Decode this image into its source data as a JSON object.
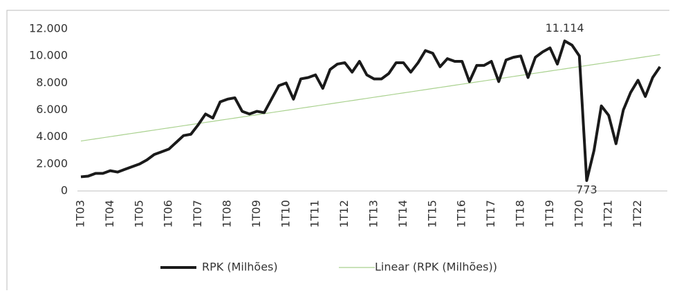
{
  "chart_data": {
    "type": "line",
    "categories": [
      "1T03",
      null,
      null,
      null,
      "1T04",
      null,
      null,
      null,
      "1T05",
      null,
      null,
      null,
      "1T06",
      null,
      null,
      null,
      "1T07",
      null,
      null,
      null,
      "1T08",
      null,
      null,
      null,
      "1T09",
      null,
      null,
      null,
      "1T10",
      null,
      null,
      null,
      "1T11",
      null,
      null,
      null,
      "1T12",
      null,
      null,
      null,
      "1T13",
      null,
      null,
      null,
      "1T14",
      null,
      null,
      null,
      "1T15",
      null,
      null,
      null,
      "1T16",
      null,
      null,
      null,
      "1T17",
      null,
      null,
      null,
      "1T18",
      null,
      null,
      null,
      "1T19",
      null,
      null,
      null,
      "1T20",
      null,
      null,
      null,
      "1T21",
      null,
      null,
      null,
      "1T22",
      null,
      null,
      null
    ],
    "series": [
      {
        "name": "RPK (Milhões)",
        "color": "#1a1a1a",
        "values": [
          1050,
          1100,
          1300,
          1300,
          1500,
          1400,
          1600,
          1800,
          2000,
          2300,
          2700,
          2900,
          3100,
          3600,
          4100,
          4200,
          4900,
          5700,
          5400,
          6600,
          6800,
          6900,
          5900,
          5700,
          5900,
          5800,
          6800,
          7800,
          8000,
          6800,
          8300,
          8400,
          8600,
          7600,
          9000,
          9400,
          9500,
          8800,
          9600,
          8600,
          8300,
          8300,
          8700,
          9500,
          9500,
          8800,
          9500,
          10400,
          10200,
          9200,
          9800,
          9600,
          9600,
          8100,
          9300,
          9300,
          9600,
          8100,
          9700,
          9900,
          10000,
          8400,
          9900,
          10300,
          10600,
          9400,
          11114,
          10800,
          10000,
          773,
          3000,
          6300,
          5600,
          3500,
          6000,
          7300,
          8200,
          7000,
          8400,
          9200
        ],
        "value_labels": [
          null,
          null,
          null,
          null,
          null,
          null,
          null,
          null,
          null,
          null,
          null,
          null,
          null,
          null,
          null,
          null,
          null,
          null,
          null,
          null,
          null,
          null,
          null,
          null,
          null,
          null,
          null,
          null,
          null,
          null,
          null,
          null,
          null,
          null,
          null,
          null,
          null,
          null,
          null,
          null,
          null,
          null,
          null,
          null,
          null,
          null,
          null,
          null,
          null,
          null,
          null,
          null,
          null,
          null,
          null,
          null,
          null,
          null,
          null,
          null,
          null,
          null,
          null,
          null,
          null,
          null,
          "11.114",
          null,
          null,
          "773",
          null,
          null,
          null,
          null,
          null,
          null,
          null,
          null,
          null,
          null
        ]
      },
      {
        "name": "Linear (RPK (Milhões))",
        "color": "#a9d18e",
        "values": [
          3700,
          3781,
          3862,
          3943,
          4024,
          4105,
          4186,
          4267,
          4348,
          4429,
          4510,
          4591,
          4672,
          4753,
          4834,
          4915,
          4996,
          5077,
          5158,
          5239,
          5320,
          5401,
          5482,
          5563,
          5644,
          5725,
          5806,
          5887,
          5968,
          6049,
          6130,
          6211,
          6292,
          6373,
          6454,
          6535,
          6616,
          6697,
          6778,
          6859,
          6940,
          7021,
          7102,
          7183,
          7264,
          7345,
          7426,
          7507,
          7588,
          7669,
          7750,
          7831,
          7912,
          7993,
          8074,
          8155,
          8236,
          8317,
          8398,
          8479,
          8560,
          8641,
          8722,
          8803,
          8884,
          8965,
          9046,
          9127,
          9208,
          9289,
          9370,
          9451,
          9532,
          9613,
          9694,
          9775,
          9856,
          9937,
          10018,
          10099
        ]
      }
    ],
    "ylim": [
      0,
      12000
    ],
    "yticks": [
      0,
      {
        "value": 2000,
        "label": "2.000"
      },
      {
        "value": 4000,
        "label": "4.000"
      },
      {
        "value": 6000,
        "label": "6.000"
      },
      {
        "value": 8000,
        "label": "8.000"
      },
      {
        "value": 10000,
        "label": "10.000"
      },
      {
        "value": 12000,
        "label": "12.000"
      }
    ],
    "grid": false,
    "legend": "bottom"
  }
}
